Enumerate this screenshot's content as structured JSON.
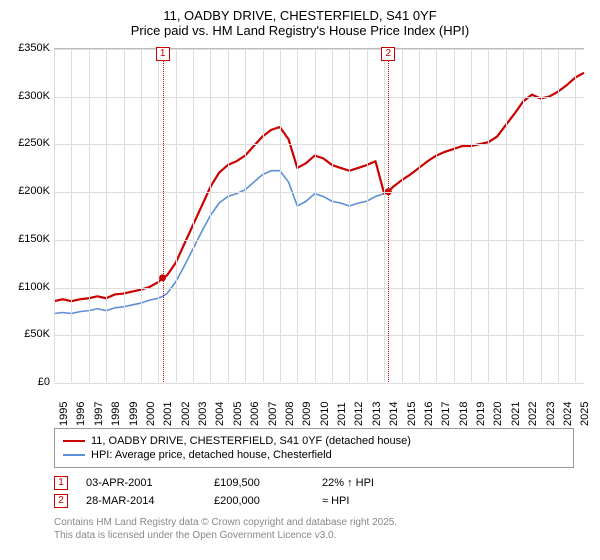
{
  "title": {
    "line1": "11, OADBY DRIVE, CHESTERFIELD, S41 0YF",
    "line2": "Price paid vs. HM Land Registry's House Price Index (HPI)"
  },
  "chart": {
    "type": "line",
    "background_color": "#ffffff",
    "grid_color": "#dddddd",
    "ylim": [
      0,
      350000
    ],
    "ytick_step": 50000,
    "yticks": [
      0,
      50000,
      100000,
      150000,
      200000,
      250000,
      300000,
      350000
    ],
    "ytick_labels": [
      "£0",
      "£50K",
      "£100K",
      "£150K",
      "£200K",
      "£250K",
      "£300K",
      "£350K"
    ],
    "ytick_fontsize": 11,
    "xlim": [
      1995,
      2025.5
    ],
    "xticks": [
      1995,
      1996,
      1997,
      1998,
      1999,
      2000,
      2001,
      2002,
      2003,
      2004,
      2005,
      2006,
      2007,
      2008,
      2009,
      2010,
      2011,
      2012,
      2013,
      2014,
      2015,
      2016,
      2017,
      2018,
      2019,
      2020,
      2021,
      2022,
      2023,
      2024,
      2025
    ],
    "xtick_labels": [
      "1995",
      "1996",
      "1997",
      "1998",
      "1999",
      "2000",
      "2001",
      "2002",
      "2003",
      "2004",
      "2005",
      "2006",
      "2007",
      "2008",
      "2009",
      "2010",
      "2011",
      "2012",
      "2013",
      "2014",
      "2015",
      "2016",
      "2017",
      "2018",
      "2019",
      "2020",
      "2021",
      "2022",
      "2023",
      "2024",
      "2025"
    ],
    "xtick_fontsize": 11,
    "series": [
      {
        "name": "property",
        "label": "11, OADBY DRIVE, CHESTERFIELD, S41 0YF (detached house)",
        "color": "#cc0000",
        "line_width": 2.2,
        "data": [
          [
            1995,
            85000
          ],
          [
            1995.5,
            87000
          ],
          [
            1996,
            85000
          ],
          [
            1996.5,
            87000
          ],
          [
            1997,
            88000
          ],
          [
            1997.5,
            90000
          ],
          [
            1998,
            88000
          ],
          [
            1998.5,
            92000
          ],
          [
            1999,
            93000
          ],
          [
            1999.5,
            95000
          ],
          [
            2000,
            97000
          ],
          [
            2000.5,
            100000
          ],
          [
            2001,
            105000
          ],
          [
            2001.25,
            109500
          ],
          [
            2001.5,
            112000
          ],
          [
            2002,
            125000
          ],
          [
            2002.5,
            145000
          ],
          [
            2003,
            165000
          ],
          [
            2003.5,
            185000
          ],
          [
            2004,
            205000
          ],
          [
            2004.5,
            220000
          ],
          [
            2005,
            228000
          ],
          [
            2005.5,
            232000
          ],
          [
            2006,
            238000
          ],
          [
            2006.5,
            248000
          ],
          [
            2007,
            258000
          ],
          [
            2007.5,
            265000
          ],
          [
            2008,
            268000
          ],
          [
            2008.5,
            255000
          ],
          [
            2009,
            225000
          ],
          [
            2009.5,
            230000
          ],
          [
            2010,
            238000
          ],
          [
            2010.5,
            235000
          ],
          [
            2011,
            228000
          ],
          [
            2011.5,
            225000
          ],
          [
            2012,
            222000
          ],
          [
            2012.5,
            225000
          ],
          [
            2013,
            228000
          ],
          [
            2013.5,
            232000
          ],
          [
            2014,
            198000
          ],
          [
            2014.24,
            200000
          ],
          [
            2014.5,
            205000
          ],
          [
            2015,
            212000
          ],
          [
            2015.5,
            218000
          ],
          [
            2016,
            225000
          ],
          [
            2016.5,
            232000
          ],
          [
            2017,
            238000
          ],
          [
            2017.5,
            242000
          ],
          [
            2018,
            245000
          ],
          [
            2018.5,
            248000
          ],
          [
            2019,
            248000
          ],
          [
            2019.5,
            250000
          ],
          [
            2020,
            252000
          ],
          [
            2020.5,
            258000
          ],
          [
            2021,
            270000
          ],
          [
            2021.5,
            282000
          ],
          [
            2022,
            295000
          ],
          [
            2022.5,
            302000
          ],
          [
            2023,
            298000
          ],
          [
            2023.5,
            300000
          ],
          [
            2024,
            305000
          ],
          [
            2024.5,
            312000
          ],
          [
            2025,
            320000
          ],
          [
            2025.5,
            325000
          ]
        ]
      },
      {
        "name": "hpi",
        "label": "HPI: Average price, detached house, Chesterfield",
        "color": "#5b8fd6",
        "line_width": 1.6,
        "data": [
          [
            1995,
            72000
          ],
          [
            1995.5,
            73000
          ],
          [
            1996,
            72000
          ],
          [
            1996.5,
            74000
          ],
          [
            1997,
            75000
          ],
          [
            1997.5,
            77000
          ],
          [
            1998,
            75000
          ],
          [
            1998.5,
            78000
          ],
          [
            1999,
            79000
          ],
          [
            1999.5,
            81000
          ],
          [
            2000,
            83000
          ],
          [
            2000.5,
            86000
          ],
          [
            2001,
            88000
          ],
          [
            2001.25,
            90000
          ],
          [
            2001.5,
            93000
          ],
          [
            2002,
            105000
          ],
          [
            2002.5,
            122000
          ],
          [
            2003,
            140000
          ],
          [
            2003.5,
            158000
          ],
          [
            2004,
            175000
          ],
          [
            2004.5,
            188000
          ],
          [
            2005,
            195000
          ],
          [
            2005.5,
            198000
          ],
          [
            2006,
            202000
          ],
          [
            2006.5,
            210000
          ],
          [
            2007,
            218000
          ],
          [
            2007.5,
            222000
          ],
          [
            2008,
            222000
          ],
          [
            2008.5,
            210000
          ],
          [
            2009,
            185000
          ],
          [
            2009.5,
            190000
          ],
          [
            2010,
            198000
          ],
          [
            2010.5,
            195000
          ],
          [
            2011,
            190000
          ],
          [
            2011.5,
            188000
          ],
          [
            2012,
            185000
          ],
          [
            2012.5,
            188000
          ],
          [
            2013,
            190000
          ],
          [
            2013.5,
            195000
          ],
          [
            2014,
            198000
          ],
          [
            2014.24,
            200000
          ],
          [
            2014.5,
            205000
          ],
          [
            2015,
            212000
          ],
          [
            2015.5,
            218000
          ],
          [
            2016,
            225000
          ],
          [
            2016.5,
            232000
          ],
          [
            2017,
            238000
          ],
          [
            2017.5,
            242000
          ],
          [
            2018,
            245000
          ],
          [
            2018.5,
            248000
          ],
          [
            2019,
            248000
          ],
          [
            2019.5,
            250000
          ],
          [
            2020,
            252000
          ],
          [
            2020.5,
            258000
          ],
          [
            2021,
            270000
          ],
          [
            2021.5,
            282000
          ],
          [
            2022,
            295000
          ],
          [
            2022.5,
            302000
          ],
          [
            2023,
            298000
          ],
          [
            2023.5,
            300000
          ],
          [
            2024,
            305000
          ],
          [
            2024.5,
            312000
          ],
          [
            2025,
            320000
          ],
          [
            2025.5,
            325000
          ]
        ]
      }
    ],
    "markers": [
      {
        "n": "1",
        "year": 2001.25,
        "marker_color": "#cc0000",
        "marker_bg": "#ffffff"
      },
      {
        "n": "2",
        "year": 2014.24,
        "marker_color": "#cc0000",
        "marker_bg": "#ffffff"
      }
    ],
    "transaction_points": [
      {
        "year": 2001.25,
        "value": 109500,
        "color": "#cc0000",
        "radius": 3.5
      },
      {
        "year": 2014.24,
        "value": 200000,
        "color": "#cc0000",
        "radius": 3.5
      }
    ]
  },
  "legend": {
    "border_color": "#999999",
    "rows": [
      {
        "color": "#cc0000",
        "thickness": 2.2,
        "text": "11, OADBY DRIVE, CHESTERFIELD, S41 0YF (detached house)"
      },
      {
        "color": "#5b8fd6",
        "thickness": 1.6,
        "text": "HPI: Average price, detached house, Chesterfield"
      }
    ]
  },
  "transactions": [
    {
      "n": "1",
      "date": "03-APR-2001",
      "price": "£109,500",
      "hpi_rel": "22% ↑ HPI"
    },
    {
      "n": "2",
      "date": "28-MAR-2014",
      "price": "£200,000",
      "hpi_rel": "≈ HPI"
    }
  ],
  "footer": {
    "line1": "Contains HM Land Registry data © Crown copyright and database right 2025.",
    "line2": "This data is licensed under the Open Government Licence v3.0."
  }
}
